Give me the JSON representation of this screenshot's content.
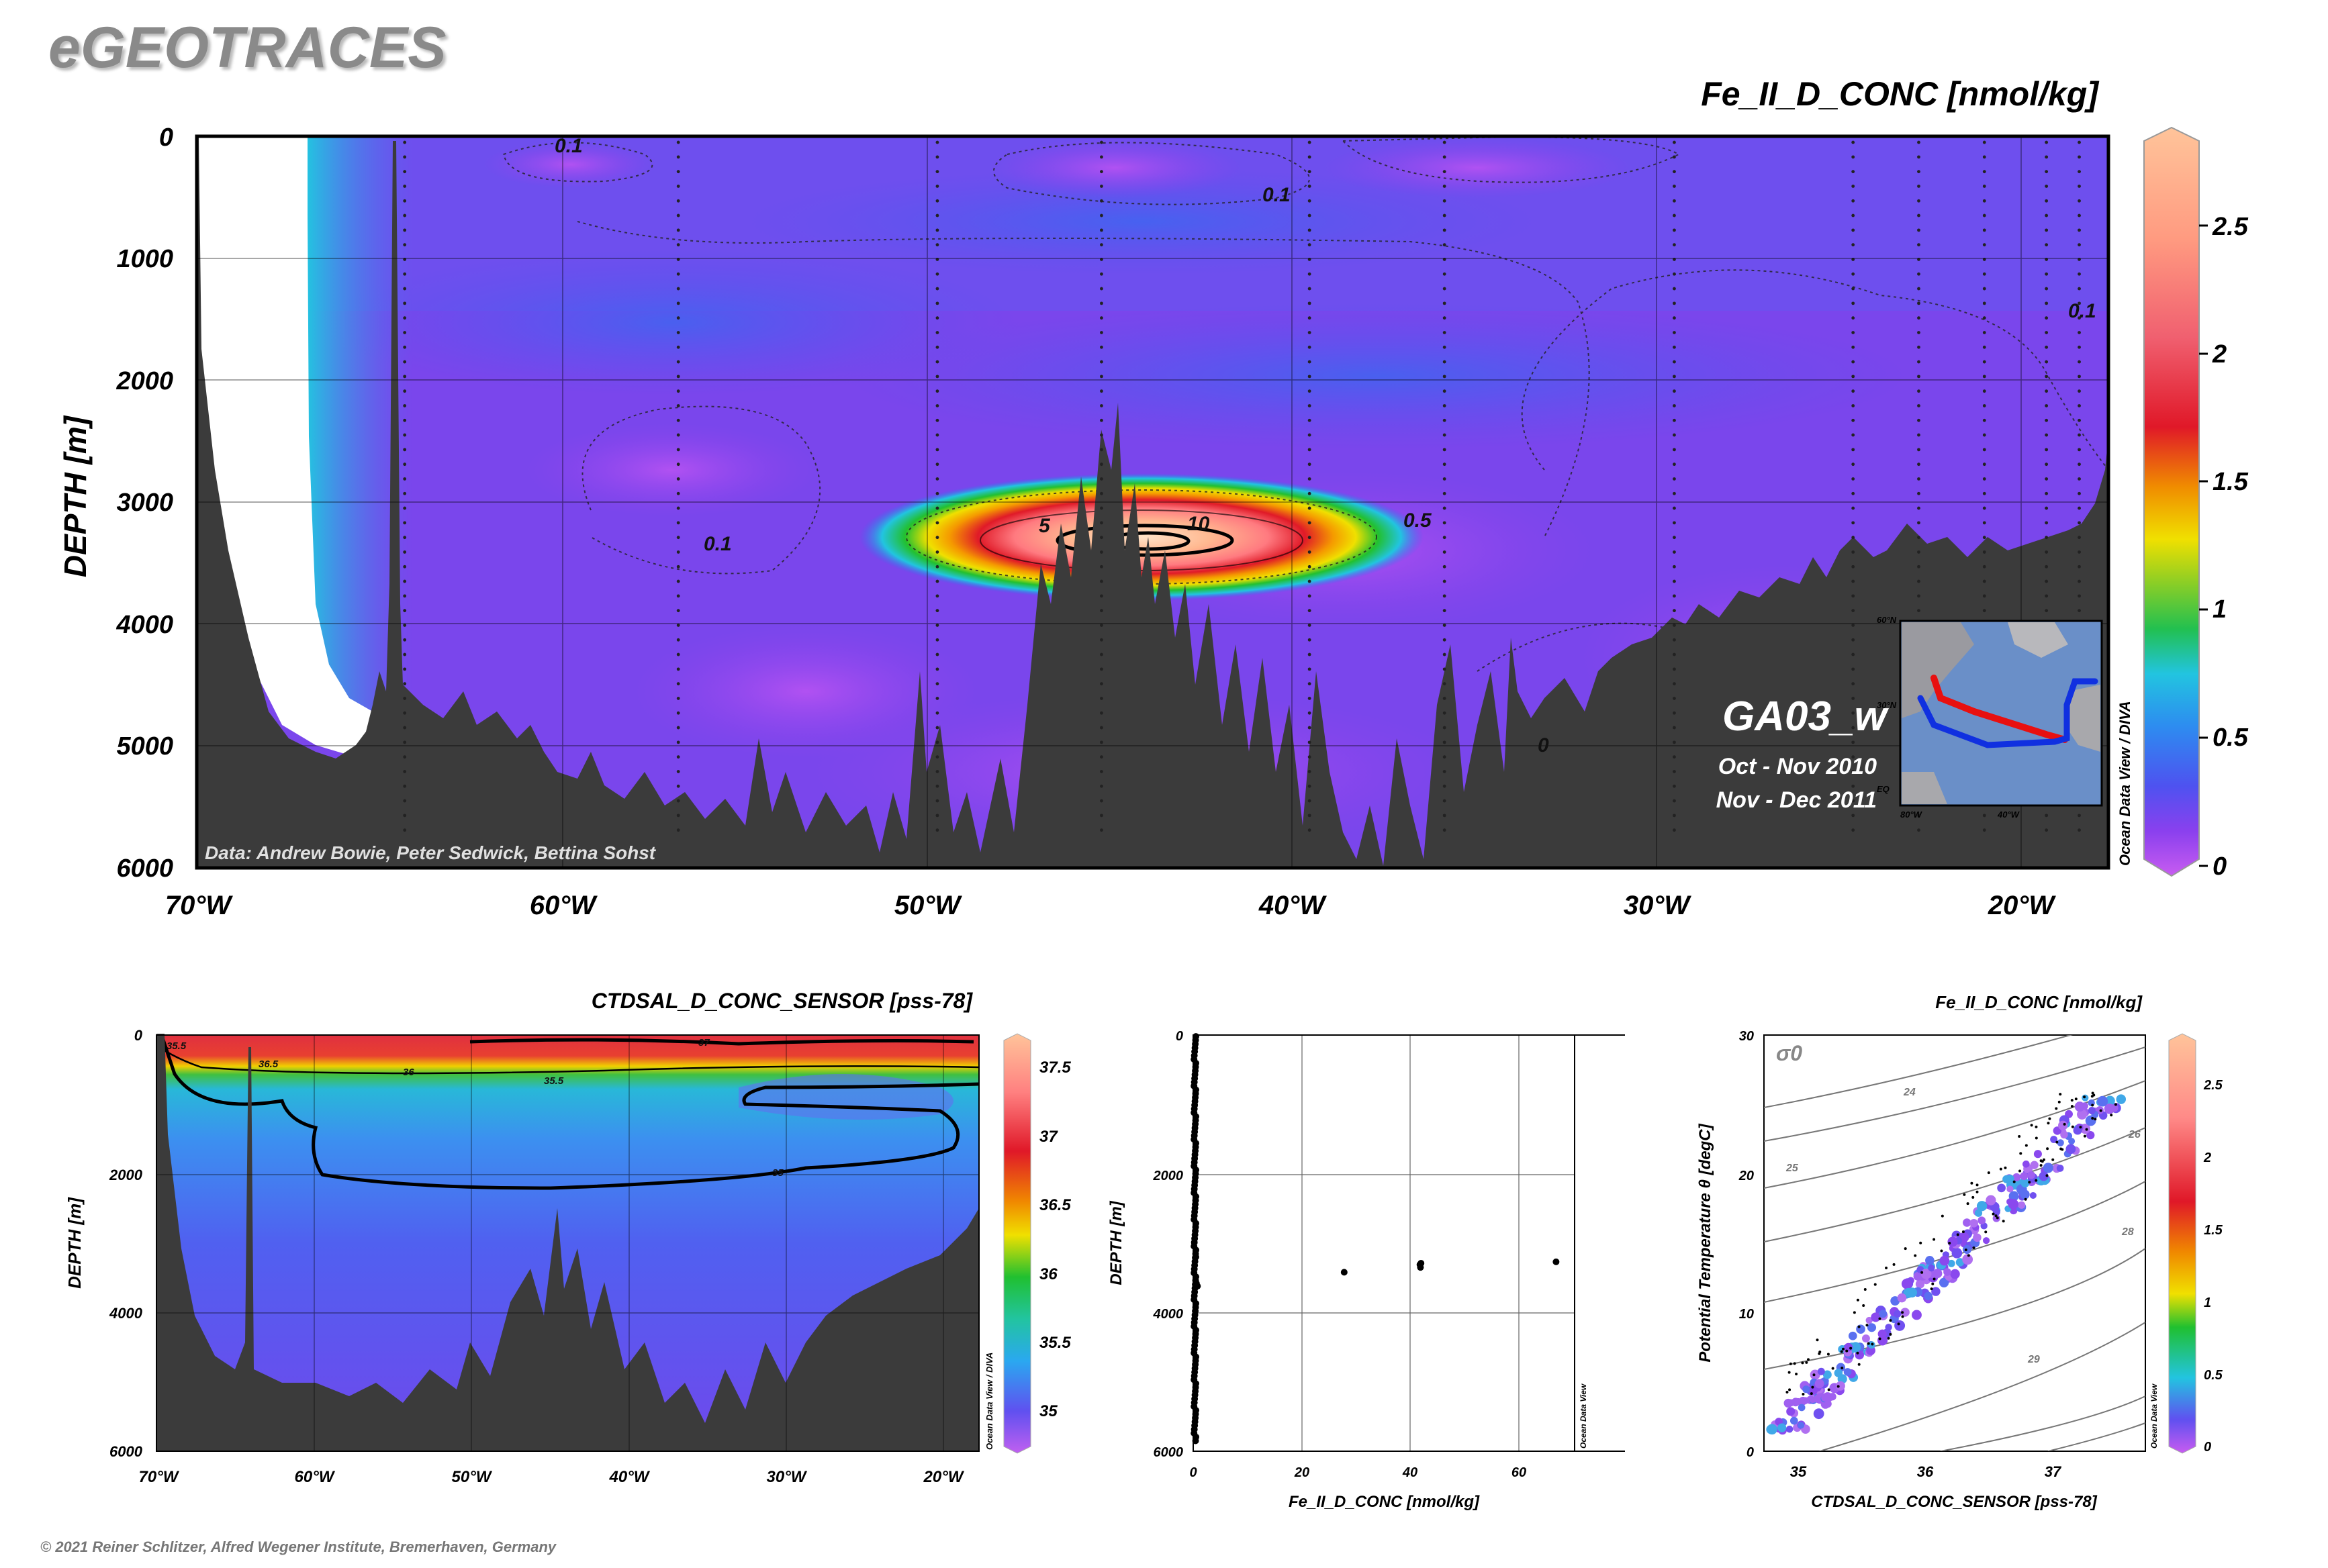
{
  "header": {
    "logo_text": "eGEOTRACES",
    "copyright": "© 2021 Reiner Schlitzer, Alfred Wegener Institute, Bremerhaven, Germany"
  },
  "colors": {
    "terrain": "#3b3b3b",
    "background_field": "#7b3fe6",
    "contour": "#000000"
  },
  "chart_data": [
    {
      "type": "heatmap",
      "title": "Fe_II_D_CONC [nmol/kg]",
      "ylabel": "DEPTH [m]",
      "xlabel": "",
      "x_ticks": [
        "70°W",
        "60°W",
        "50°W",
        "40°W",
        "30°W",
        "20°W"
      ],
      "y_ticks": [
        "0",
        "1000",
        "2000",
        "3000",
        "4000",
        "5000",
        "6000"
      ],
      "xlim": [
        -70,
        -17.6
      ],
      "ylim": [
        6000,
        0
      ],
      "colorbar_ticks": [
        "0",
        "0.5",
        "1",
        "1.5",
        "2",
        "2.5"
      ],
      "colorbar_range": [
        0,
        2.8
      ],
      "colorbar_colors": [
        "#c85cf0",
        "#7a3cf0",
        "#2d6ef0",
        "#22c4e0",
        "#20c030",
        "#f0e000",
        "#f08800",
        "#e01828",
        "#ff8090",
        "#ffc090"
      ],
      "colorbar_note": "Ocean Data View / DIVA",
      "contour_labels": [
        "0.1",
        "0.1",
        "0.1",
        "0.1",
        "0.5",
        "5",
        "10",
        "0"
      ],
      "hotspot": {
        "lon": -44.5,
        "depth": 3250,
        "max_value": 10
      },
      "section_name": "GA03_w",
      "dates": [
        "Oct - Nov 2010",
        "Nov - Dec 2011"
      ],
      "credits": "Data: Andrew Bowie, Peter Sedwick, Bettina Sohst",
      "inset_map": {
        "lat_labels": [
          "60°N",
          "30°N",
          "EQ"
        ],
        "lon_labels": [
          "80°W",
          "40°W"
        ],
        "track_colors": [
          "#e81010",
          "#1030e0"
        ]
      },
      "station_lons": [
        -64.3,
        -56.8,
        -49.7,
        -45.2,
        -39.5,
        -35.8,
        -29.5,
        -24.6,
        -22.8,
        -21.0,
        -19.3,
        -18.4
      ]
    },
    {
      "type": "heatmap",
      "title": "CTDSAL_D_CONC_SENSOR [pss-78]",
      "ylabel": "DEPTH [m]",
      "x_ticks": [
        "70°W",
        "60°W",
        "50°W",
        "40°W",
        "30°W",
        "20°W"
      ],
      "y_ticks": [
        "0",
        "2000",
        "4000",
        "6000"
      ],
      "colorbar_ticks": [
        "35",
        "35.5",
        "36",
        "36.5",
        "37",
        "37.5"
      ],
      "colorbar_range": [
        34.7,
        37.8
      ],
      "colorbar_note": "Ocean Data View / DIVA",
      "contour_labels": [
        "35.5",
        "36.5",
        "36",
        "35.5",
        "37",
        "35"
      ]
    },
    {
      "type": "scatter",
      "xlabel": "Fe_II_D_CONC [nmol/kg]",
      "ylabel": "DEPTH [m]",
      "x_ticks": [
        "0",
        "20",
        "40",
        "60"
      ],
      "y_ticks": [
        "0",
        "2000",
        "4000",
        "6000"
      ],
      "xlim": [
        0,
        72
      ],
      "ylim": [
        6000,
        0
      ],
      "side_note": "Ocean Data View",
      "points": [
        [
          28.5,
          3420
        ],
        [
          42.8,
          3310
        ],
        [
          42.9,
          3350
        ],
        [
          43.0,
          3290
        ],
        [
          68.5,
          3270
        ],
        [
          0.6,
          3580
        ],
        [
          0.5,
          3200
        ],
        [
          0.8,
          3620
        ]
      ]
    },
    {
      "type": "scatter",
      "title": "Fe_II_D_CONC [nmol/kg]",
      "xlabel": "CTDSAL_D_CONC_SENSOR [pss-78]",
      "ylabel": "Potential Temperature θ [degC]",
      "x_ticks": [
        "35",
        "36",
        "37"
      ],
      "y_ticks": [
        "0",
        "10",
        "20",
        "30"
      ],
      "xlim": [
        34.7,
        37.7
      ],
      "ylim": [
        0,
        30
      ],
      "isopycnal_label": "σ0",
      "isopycnal_values": [
        "24",
        "25",
        "26",
        "28",
        "29"
      ],
      "colorbar_ticks": [
        "0",
        "0.5",
        "1",
        "1.5",
        "2",
        "2.5"
      ],
      "side_note": "Ocean Data View"
    }
  ]
}
